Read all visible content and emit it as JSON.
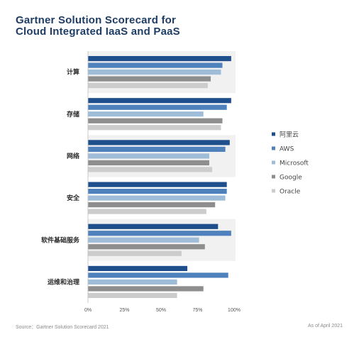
{
  "title": {
    "line1": "Gartner Solution Scorecard for",
    "line2": "Cloud Integrated IaaS and PaaS"
  },
  "footer": {
    "source": "Source：Gartner Solution Scorecard 2021",
    "asof": "As of April 2021"
  },
  "chart_data": {
    "type": "bar",
    "orientation": "horizontal",
    "categories": [
      "计算",
      "存储",
      "网络",
      "安全",
      "软件基础服务",
      "运维和治理"
    ],
    "series": [
      {
        "name": "阿里云",
        "color": "#1f4e8c",
        "values": [
          98,
          98,
          97,
          95,
          89,
          68
        ]
      },
      {
        "name": "AWS",
        "color": "#4f82bd",
        "values": [
          92,
          95,
          94,
          95,
          98,
          96
        ]
      },
      {
        "name": "Microsoft",
        "color": "#9fbcd8",
        "values": [
          91,
          79,
          83,
          94,
          76,
          61
        ]
      },
      {
        "name": "Google",
        "color": "#8e8e8e",
        "values": [
          84,
          92,
          83,
          87,
          80,
          79
        ]
      },
      {
        "name": "Oracle",
        "color": "#cccccc",
        "values": [
          82,
          91,
          85,
          81,
          64,
          61
        ]
      }
    ],
    "x_ticks": [
      "0%",
      "25%",
      "50%",
      "75%",
      "100%"
    ],
    "xlim": [
      0,
      100
    ],
    "legend_position": "right",
    "grid": "alternating-bands"
  }
}
